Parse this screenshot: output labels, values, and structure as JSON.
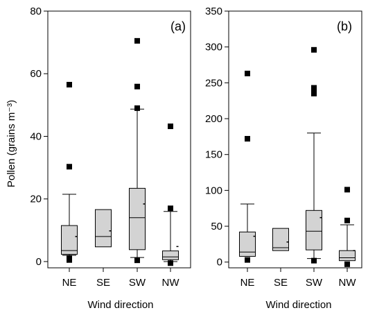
{
  "chart_data": [
    {
      "type": "box",
      "panel_label": "(a)",
      "xlabel": "Wind direction",
      "ylabel": "Pollen (grains m⁻³)",
      "ylim": [
        -2,
        80
      ],
      "yticks": [
        0,
        20,
        40,
        60,
        80
      ],
      "categories": [
        "NE",
        "SE",
        "SW",
        "NW"
      ],
      "boxes": [
        {
          "category": "NE",
          "whisker_low": 2.0,
          "q1": 2.3,
          "median": 3.5,
          "q3": 11.5,
          "whisker_high": 21.5,
          "mean": 8.0,
          "outliers": [
            0.5,
            1.2,
            30.3,
            56.5
          ]
        },
        {
          "category": "SE",
          "whisker_low": 4.7,
          "q1": 4.7,
          "median": 8.0,
          "q3": 16.6,
          "whisker_high": 16.6,
          "mean": 9.8,
          "outliers": []
        },
        {
          "category": "SW",
          "whisker_low": 1.3,
          "q1": 3.8,
          "median": 14.0,
          "q3": 23.4,
          "whisker_high": 48.7,
          "mean": 18.4,
          "outliers": [
            0.4,
            49.0,
            55.9,
            70.5
          ]
        },
        {
          "category": "NW",
          "whisker_low": 0.0,
          "q1": 0.6,
          "median": 1.5,
          "q3": 3.4,
          "whisker_high": 16.0,
          "mean": 4.8,
          "outliers": [
            -0.5,
            17.0,
            43.2
          ]
        }
      ]
    },
    {
      "type": "box",
      "panel_label": "(b)",
      "xlabel": "Wind direction",
      "ylabel": "",
      "ylim": [
        -8,
        350
      ],
      "yticks": [
        0,
        50,
        100,
        150,
        200,
        250,
        300,
        350
      ],
      "categories": [
        "NE",
        "SE",
        "SW",
        "NW"
      ],
      "boxes": [
        {
          "category": "NE",
          "whisker_low": 8,
          "q1": 8,
          "median": 14,
          "q3": 42,
          "whisker_high": 81,
          "mean": 36,
          "outliers": [
            3,
            172,
            263
          ]
        },
        {
          "category": "SE",
          "whisker_low": 16,
          "q1": 16,
          "median": 20,
          "q3": 47,
          "whisker_high": 47,
          "mean": 28,
          "outliers": []
        },
        {
          "category": "SW",
          "whisker_low": 5,
          "q1": 17,
          "median": 43,
          "q3": 72,
          "whisker_high": 180,
          "mean": 62,
          "outliers": [
            2,
            235,
            240,
            243,
            296
          ]
        },
        {
          "category": "NW",
          "whisker_low": 2,
          "q1": 2,
          "median": 6,
          "q3": 16,
          "whisker_high": 52,
          "mean": 16,
          "outliers": [
            -3,
            58,
            101
          ]
        }
      ]
    }
  ],
  "style": {
    "box_fill": "#d3d3d3",
    "line_color": "#000000",
    "outlier_color": "#000000"
  }
}
